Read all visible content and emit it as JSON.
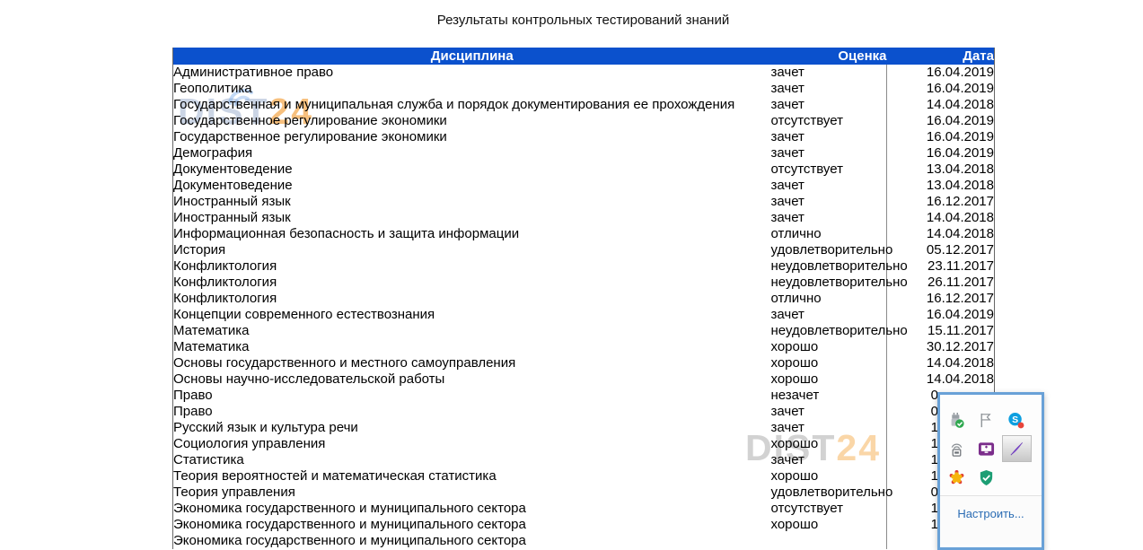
{
  "title": "Результаты контрольных тестирований знаний",
  "table": {
    "headers": [
      "Дисциплина",
      "Оценка",
      "Дата"
    ],
    "header_bg_color": "#0b51cd",
    "rows": [
      {
        "discipline": "Административное право",
        "grade": "зачет",
        "date": "16.04.2019"
      },
      {
        "discipline": "Геополитика",
        "grade": "зачет",
        "date": "16.04.2019"
      },
      {
        "discipline": "Государственная и муниципальная служба и порядок документирования ее прохождения",
        "grade": "зачет",
        "date": "14.04.2018"
      },
      {
        "discipline": "Государственное регулирование экономики",
        "grade": "отсутствует",
        "date": "16.04.2019"
      },
      {
        "discipline": "Государственное регулирование экономики",
        "grade": "зачет",
        "date": "16.04.2019"
      },
      {
        "discipline": "Демография",
        "grade": "зачет",
        "date": "16.04.2019"
      },
      {
        "discipline": "Документоведение",
        "grade": "отсутствует",
        "date": "13.04.2018"
      },
      {
        "discipline": "Документоведение",
        "grade": "зачет",
        "date": "13.04.2018"
      },
      {
        "discipline": "Иностранный язык",
        "grade": "зачет",
        "date": "16.12.2017"
      },
      {
        "discipline": "Иностранный язык",
        "grade": "зачет",
        "date": "14.04.2018"
      },
      {
        "discipline": "Информационная безопасность и защита информации",
        "grade": "отлично",
        "date": "14.04.2018"
      },
      {
        "discipline": "История",
        "grade": "удовлетворительно",
        "date": "05.12.2017"
      },
      {
        "discipline": "Конфликтология",
        "grade": "неудовлетворительно",
        "date": "23.11.2017"
      },
      {
        "discipline": "Конфликтология",
        "grade": "неудовлетворительно",
        "date": "26.11.2017"
      },
      {
        "discipline": "Конфликтология",
        "grade": "отлично",
        "date": "16.12.2017"
      },
      {
        "discipline": "Концепции современного естествознания",
        "grade": "зачет",
        "date": "16.04.2019"
      },
      {
        "discipline": "Математика",
        "grade": "неудовлетворительно",
        "date": "15.11.2017"
      },
      {
        "discipline": "Математика",
        "grade": "хорошо",
        "date": "30.12.2017"
      },
      {
        "discipline": "Основы государственного и местного самоуправления",
        "grade": "хорошо",
        "date": "14.04.2018"
      },
      {
        "discipline": "Основы научно-исследовательской работы",
        "grade": "хорошо",
        "date": "14.04.2018"
      },
      {
        "discipline": "Право",
        "grade": "незачет",
        "date": "0"
      },
      {
        "discipline": "Право",
        "grade": "зачет",
        "date": "0"
      },
      {
        "discipline": "Русский язык и культура речи",
        "grade": "зачет",
        "date": "1"
      },
      {
        "discipline": "Социология управления",
        "grade": "хорошо",
        "date": "1"
      },
      {
        "discipline": "Статистика",
        "grade": "зачет",
        "date": "1"
      },
      {
        "discipline": "Теория вероятностей и математическая статистика",
        "grade": "хорошо",
        "date": "1"
      },
      {
        "discipline": "Теория управления",
        "grade": "удовлетворительно",
        "date": "0"
      },
      {
        "discipline": "Экономика государственного и муниципального сектора",
        "grade": "отсутствует",
        "date": "1"
      },
      {
        "discipline": "Экономика государственного и муниципального сектора",
        "grade": "хорошо",
        "date": "1"
      },
      {
        "discipline": "Экономика государственного и муниципального сектора",
        "grade": "",
        "date": ""
      }
    ]
  },
  "watermarks": [
    {
      "text_gray": "DIST",
      "text_orange": "24"
    },
    {
      "text_gray": "DIST",
      "text_orange": "24"
    }
  ],
  "tray_popup": {
    "customize_label": "Настроить...",
    "border_color": "#69a1d7",
    "link_color": "#2a6cb4",
    "icons": [
      "usb-eject-icon",
      "flag-icon",
      "skype-icon",
      "wireless-transmitter-icon",
      "remote-screen-icon",
      "pen-icon",
      "settings-flower-icon",
      "security-shield-icon"
    ]
  }
}
